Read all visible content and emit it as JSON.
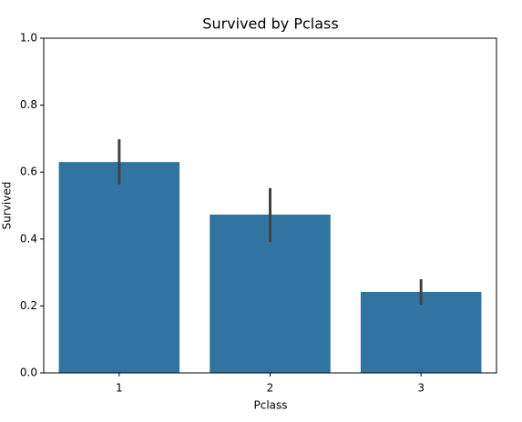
{
  "chart_data": {
    "type": "bar",
    "title": "Survived by Pclass",
    "xlabel": "Pclass",
    "ylabel": "Survived",
    "categories": [
      "1",
      "2",
      "3"
    ],
    "values": [
      0.63,
      0.473,
      0.242
    ],
    "ci_low": [
      0.563,
      0.391,
      0.204
    ],
    "ci_high": [
      0.698,
      0.552,
      0.28
    ],
    "color": "#3274a1",
    "error_color": "#424242",
    "ylim": [
      0,
      1
    ],
    "yticks": [
      {
        "value": 0,
        "label": "0.0"
      },
      0.2,
      0.4,
      0.6,
      0.8,
      {
        "value": 1,
        "label": "1.0"
      }
    ]
  }
}
